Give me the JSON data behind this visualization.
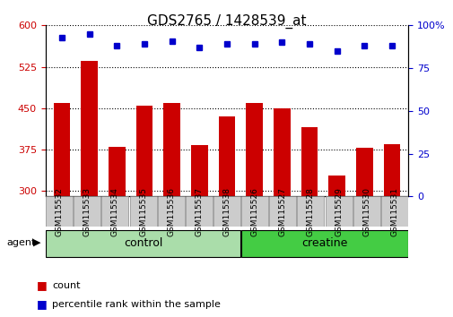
{
  "title": "GDS2765 / 1428539_at",
  "categories": [
    "GSM115532",
    "GSM115533",
    "GSM115534",
    "GSM115535",
    "GSM115536",
    "GSM115537",
    "GSM115538",
    "GSM115526",
    "GSM115527",
    "GSM115528",
    "GSM115529",
    "GSM115530",
    "GSM115531"
  ],
  "bar_values": [
    460,
    535,
    380,
    455,
    460,
    383,
    435,
    460,
    450,
    415,
    328,
    378,
    385
  ],
  "dot_values": [
    93,
    95,
    88,
    89,
    91,
    87,
    89,
    89,
    90,
    89,
    85,
    88,
    88
  ],
  "bar_color": "#cc0000",
  "dot_color": "#0000cc",
  "ylim_left": [
    290,
    600
  ],
  "ylim_right": [
    0,
    100
  ],
  "yticks_left": [
    300,
    375,
    450,
    525,
    600
  ],
  "yticks_right": [
    0,
    25,
    50,
    75,
    100
  ],
  "groups": [
    {
      "label": "control",
      "start": 0,
      "end": 7,
      "color": "#aaddaa"
    },
    {
      "label": "creatine",
      "start": 7,
      "end": 13,
      "color": "#44cc44"
    }
  ],
  "agent_label": "agent",
  "legend_count_label": "count",
  "legend_pct_label": "percentile rank within the sample",
  "bar_width": 0.6,
  "tick_label_fontsize": 6.5,
  "title_fontsize": 11
}
